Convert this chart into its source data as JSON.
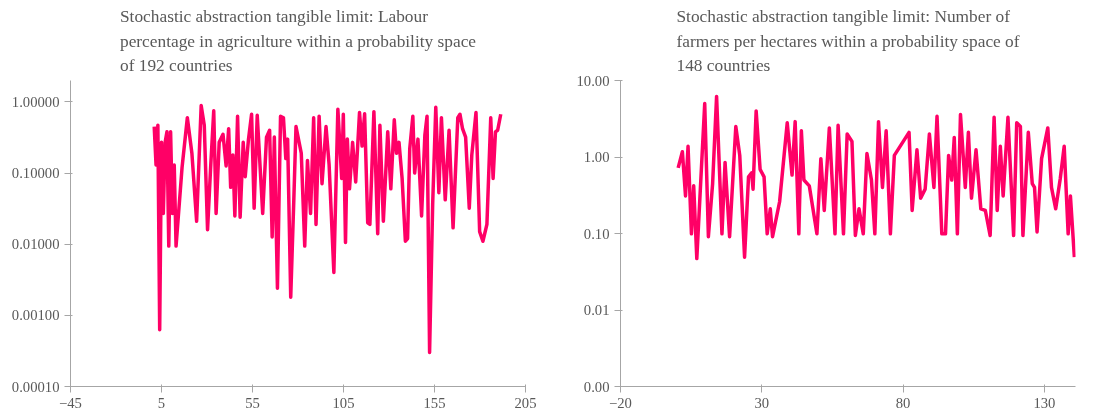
{
  "chart_data": [
    {
      "type": "line",
      "title": "Stochastic abstraction tangible limit: Labour percentage in agriculture within a probability space of 192 countries",
      "xlim": [
        -45,
        205
      ],
      "xticks": [
        -45,
        5,
        55,
        105,
        155,
        205
      ],
      "ylim": [
        0.0001,
        2
      ],
      "yticks": [
        {
          "value": 1,
          "label": "1.00000"
        },
        {
          "value": 0.1,
          "label": "0.10000"
        },
        {
          "value": 0.01,
          "label": "0.01000"
        },
        {
          "value": 0.001,
          "label": "0.00100"
        },
        {
          "value": 0.0001,
          "label": "0.00010"
        }
      ],
      "log": "y",
      "line_style": "solid",
      "series": [
        {
          "color": "#ff0066",
          "x": [
            1,
            2,
            3,
            4,
            5,
            6,
            7,
            8,
            9,
            10,
            11,
            12,
            13,
            16.3,
            19.2,
            21.7,
            24.3,
            26.8,
            28.5,
            30.3,
            32,
            33.7,
            35,
            36.7,
            38.8,
            40.5,
            41.9,
            43,
            44.2,
            45.3,
            46.8,
            48.2,
            49.9,
            51,
            52.8,
            54.5,
            55.9,
            57.6,
            60.6,
            62.7,
            64.4,
            65.8,
            67,
            68.7,
            70.4,
            72,
            73.3,
            74.3,
            76,
            77.7,
            78.9,
            81.8,
            83.7,
            85.2,
            86.9,
            88.6,
            89.9,
            91.6,
            93.2,
            95.4,
            97.1,
            99.7,
            101.9,
            104,
            104.9,
            106.1,
            107.1,
            108.3,
            110,
            111.7,
            113.8,
            115.2,
            116.6,
            118.3,
            119.5,
            121.7,
            123.8,
            125,
            126.9,
            129.3,
            131,
            132.9,
            134.1,
            135.5,
            137.2,
            139,
            140.2,
            141.4,
            143.1,
            144.1,
            145.9,
            147.9,
            149.7,
            150.9,
            152.3,
            154,
            155.7,
            157.4,
            158.8,
            160.9,
            163,
            165.2,
            167.8,
            169,
            170.4,
            172.1,
            174.1,
            175.5,
            177.8,
            179.8,
            181.6,
            183.8,
            185.9,
            187.2,
            188.5,
            189.7,
            191.4
          ],
          "values": [
            0.45,
            0.13,
            0.47,
            0.00063,
            0.27,
            0.027,
            0.27,
            0.38,
            0.0094,
            0.38,
            0.027,
            0.13,
            0.0094,
            0.12,
            0.6,
            0.19,
            0.021,
            0.89,
            0.47,
            0.016,
            0.12,
            0.75,
            0.027,
            0.27,
            0.35,
            0.126,
            0.42,
            0.063,
            0.18,
            0.025,
            0.63,
            0.024,
            0.27,
            0.089,
            0.3,
            0.67,
            0.032,
            0.65,
            0.027,
            0.32,
            0.4,
            0.0126,
            0.32,
            0.0024,
            0.63,
            0.6,
            0.16,
            0.3,
            0.0018,
            0.042,
            0.45,
            0.19,
            0.0094,
            0.15,
            0.027,
            0.6,
            0.019,
            0.63,
            0.071,
            0.45,
            0.13,
            0.004,
            0.79,
            0.084,
            0.67,
            0.0106,
            0.3,
            0.06,
            0.27,
            0.075,
            0.71,
            0.24,
            0.68,
            0.02,
            0.019,
            0.73,
            0.014,
            0.47,
            0.021,
            0.38,
            0.06,
            0.56,
            0.19,
            0.27,
            0.084,
            0.011,
            0.012,
            0.22,
            0.63,
            0.1,
            0.3,
            0.025,
            0.34,
            0.63,
            0.0003,
            0.037,
            0.84,
            0.053,
            0.6,
            0.042,
            0.4,
            0.017,
            0.6,
            0.67,
            0.42,
            0.32,
            0.032,
            0.18,
            0.71,
            0.015,
            0.011,
            0.019,
            0.6,
            0.084,
            0.38,
            0.4,
            0.67
          ]
        }
      ]
    },
    {
      "type": "line",
      "title": "Stochastic abstraction tangible limit: Number of farmers per hectares within a probability space of 148 countries",
      "xlim": [
        -20,
        141
      ],
      "xticks": [
        -20,
        30,
        80,
        130
      ],
      "ylim": [
        0.001,
        10
      ],
      "yticks": [
        {
          "value": 10,
          "label": "10.00"
        },
        {
          "value": 1,
          "label": "1.00"
        },
        {
          "value": 0.1,
          "label": "0.10"
        },
        {
          "value": 0.01,
          "label": "0.01"
        },
        {
          "value": 0.001,
          "label": "0.00"
        }
      ],
      "log": "y",
      "line_style": "solid",
      "series": [
        {
          "color": "#ff0066",
          "x": [
            0.4,
            1.9,
            3.0,
            3.9,
            5.1,
            5.9,
            7.0,
            9.8,
            11.1,
            12.6,
            14.0,
            15.9,
            17.0,
            18.6,
            20.8,
            22.2,
            23.9,
            25.3,
            26.4,
            26.9,
            28.0,
            29.4,
            30.8,
            31.9,
            33.0,
            33.8,
            36.3,
            39.0,
            40.7,
            41.8,
            43.1,
            44.0,
            44.9,
            46.8,
            49.5,
            50.9,
            52.1,
            53.9,
            55.9,
            57.0,
            58.9,
            60.2,
            61.9,
            63.1,
            64.4,
            65.9,
            67.2,
            68.8,
            70.0,
            71.3,
            72.7,
            74.0,
            75.5,
            76.9,
            82.1,
            83.2,
            84.9,
            86.2,
            87.8,
            89.3,
            90.9,
            92.0,
            93.7,
            95.0,
            96.1,
            97.2,
            98.1,
            99.2,
            100.3,
            102.0,
            103.1,
            104.2,
            105.8,
            107.5,
            109.1,
            110.8,
            112.2,
            113.3,
            114.4,
            115.4,
            117.1,
            119.1,
            120.2,
            121.5,
            122.4,
            124.3,
            125.7,
            126.5,
            127.4,
            129.0,
            131.2,
            132.5,
            134.0,
            135.6,
            137.0,
            138.4,
            139.2,
            140.6
          ],
          "values": [
            0.72,
            1.17,
            0.31,
            1.38,
            0.099,
            0.42,
            0.047,
            5.0,
            0.091,
            0.45,
            6.2,
            0.099,
            0.85,
            0.091,
            2.5,
            1.05,
            0.049,
            0.55,
            0.62,
            0.38,
            4.0,
            0.69,
            0.55,
            0.099,
            0.21,
            0.091,
            0.26,
            2.8,
            0.58,
            2.9,
            0.099,
            2.2,
            0.5,
            0.42,
            0.099,
            0.95,
            0.2,
            2.4,
            0.099,
            2.6,
            0.099,
            2.0,
            1.6,
            0.094,
            0.21,
            0.099,
            1.11,
            0.5,
            0.099,
            2.9,
            0.4,
            2.2,
            0.099,
            1.05,
            2.1,
            0.2,
            1.24,
            0.29,
            0.38,
            2.0,
            0.4,
            3.4,
            0.099,
            0.099,
            1.05,
            0.5,
            1.8,
            0.099,
            3.6,
            0.4,
            2.1,
            0.29,
            1.24,
            0.21,
            0.2,
            0.094,
            3.3,
            0.2,
            1.38,
            0.31,
            3.3,
            0.094,
            2.8,
            2.5,
            0.094,
            2.1,
            0.45,
            0.4,
            0.105,
            0.95,
            2.4,
            0.4,
            0.21,
            0.52,
            1.38,
            0.099,
            0.31,
            0.049
          ]
        }
      ]
    }
  ]
}
